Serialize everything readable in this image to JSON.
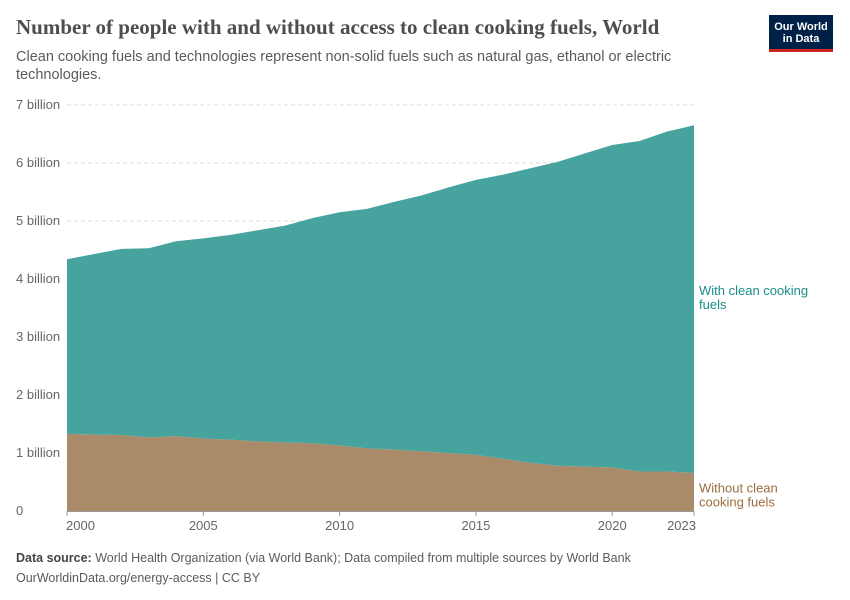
{
  "title": "Number of people with and without access to clean cooking fuels, World",
  "subtitle": "Clean cooking fuels and technologies represent non-solid fuels such as natural gas, ethanol or electric technologies.",
  "logo": {
    "line1": "Our World",
    "line2": "in Data",
    "bg": "#002147",
    "accent": "#ce261e"
  },
  "footer": {
    "source_label": "Data source:",
    "source_text": " World Health Organization (via World Bank); Data compiled from multiple sources by World Bank",
    "link": "OurWorldinData.org/energy-access | CC BY"
  },
  "chart_data": {
    "type": "area",
    "stacked": true,
    "x": [
      2000,
      2001,
      2002,
      2003,
      2004,
      2005,
      2006,
      2007,
      2008,
      2009,
      2010,
      2011,
      2012,
      2013,
      2014,
      2015,
      2016,
      2017,
      2018,
      2019,
      2020,
      2021,
      2022,
      2023
    ],
    "xticks": [
      "2000",
      "2005",
      "2010",
      "2015",
      "2020",
      "2023"
    ],
    "xtick_values": [
      2000,
      2005,
      2010,
      2015,
      2020,
      2023
    ],
    "yticks": [
      "0",
      "1 billion",
      "2 billion",
      "3 billion",
      "4 billion",
      "5 billion",
      "6 billion",
      "7 billion"
    ],
    "ylim": [
      0,
      7000000000
    ],
    "grid": "horizontal dashed",
    "series": [
      {
        "name": "Without clean cooking fuels",
        "color": "#a98b6a",
        "label_color": "#9a6e3f",
        "values": [
          1330000000,
          1320000000,
          1310000000,
          1270000000,
          1290000000,
          1250000000,
          1230000000,
          1200000000,
          1180000000,
          1170000000,
          1130000000,
          1080000000,
          1060000000,
          1030000000,
          1000000000,
          970000000,
          900000000,
          830000000,
          780000000,
          765000000,
          750000000,
          680000000,
          680000000,
          660000000
        ]
      },
      {
        "name": "With clean cooking fuels",
        "color": "#46a39e",
        "label_color": "#178f89",
        "values": [
          3010000000,
          3110000000,
          3210000000,
          3260000000,
          3360000000,
          3450000000,
          3530000000,
          3640000000,
          3740000000,
          3880000000,
          4020000000,
          4130000000,
          4270000000,
          4410000000,
          4580000000,
          4740000000,
          4900000000,
          5080000000,
          5240000000,
          5400000000,
          5560000000,
          5700000000,
          5860000000,
          5990000000
        ]
      }
    ]
  }
}
